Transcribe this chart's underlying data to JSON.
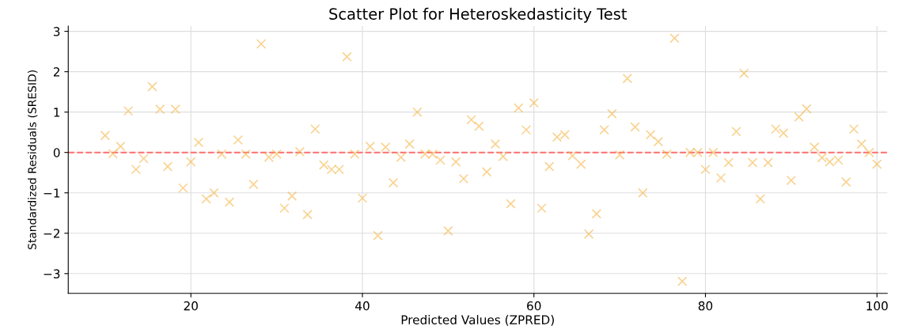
{
  "chart_data": {
    "type": "scatter",
    "title": "Scatter Plot for Heteroskedasticity Test",
    "xlabel": "Predicted Values (ZPRED)",
    "ylabel": "Standardized Residuals (SRESID)",
    "x": [
      10.0,
      10.9,
      11.8,
      12.7,
      13.6,
      14.5,
      15.5,
      16.4,
      17.3,
      18.2,
      19.1,
      20.0,
      20.9,
      21.8,
      22.7,
      23.6,
      24.5,
      25.5,
      26.4,
      27.3,
      28.2,
      29.1,
      30.0,
      30.9,
      31.8,
      32.7,
      33.6,
      34.5,
      35.5,
      36.4,
      37.3,
      38.2,
      39.1,
      40.0,
      40.9,
      41.8,
      42.7,
      43.6,
      44.5,
      45.5,
      46.4,
      47.3,
      48.2,
      49.1,
      50.0,
      50.9,
      51.8,
      52.7,
      53.6,
      54.5,
      55.5,
      56.4,
      57.3,
      58.2,
      59.1,
      60.0,
      60.9,
      61.8,
      62.7,
      63.6,
      64.5,
      65.5,
      66.4,
      67.3,
      68.2,
      69.1,
      70.0,
      70.9,
      71.8,
      72.7,
      73.6,
      74.5,
      75.5,
      76.4,
      77.3,
      78.2,
      79.1,
      80.0,
      80.9,
      81.8,
      82.7,
      83.6,
      84.5,
      85.5,
      86.4,
      87.3,
      88.2,
      89.1,
      90.0,
      90.9,
      91.8,
      92.7,
      93.6,
      94.5,
      95.5,
      96.4,
      97.3,
      98.2,
      99.1,
      100.0
    ],
    "series": [
      {
        "color": "#f5b547",
        "values": [
          0.42,
          -0.03,
          0.15,
          1.03,
          -0.42,
          -0.15,
          1.63,
          1.07,
          -0.35,
          1.07,
          -0.88,
          -0.23,
          0.25,
          -1.15,
          -1.0,
          -0.04,
          -1.23,
          0.31,
          -0.04,
          -0.79,
          2.69,
          -0.12,
          -0.04,
          -1.38,
          -1.08,
          0.02,
          -1.54,
          0.58,
          -0.31,
          -0.42,
          -0.42,
          2.37,
          -0.04,
          -1.13,
          0.15,
          -2.06,
          0.13,
          -0.75,
          -0.12,
          0.21,
          1.0,
          -0.04,
          -0.04,
          -0.19,
          -1.94,
          -0.23,
          -0.65,
          0.81,
          0.65,
          -0.48,
          0.21,
          -0.1,
          -1.27,
          1.1,
          0.56,
          1.23,
          -1.38,
          -0.35,
          0.38,
          0.44,
          -0.08,
          -0.29,
          -2.02,
          -1.52,
          0.56,
          0.96,
          -0.06,
          1.83,
          0.63,
          -1.0,
          0.44,
          0.27,
          -0.04,
          2.83,
          -3.19,
          0.0,
          0.0,
          -0.42,
          0.0,
          -0.63,
          -0.25,
          0.52,
          1.96,
          -0.25,
          -1.15,
          -0.25,
          0.58,
          0.48,
          -0.69,
          0.88,
          1.08,
          0.13,
          -0.13,
          -0.23,
          -0.19,
          -0.73,
          0.58,
          0.21,
          0.0,
          -0.29
        ]
      }
    ],
    "marker": "cross",
    "xlim": [
      5.7,
      101.2
    ],
    "ylim": [
      -3.49,
      3.13
    ],
    "xticks": [
      20,
      40,
      60,
      80,
      100
    ],
    "yticks": [
      {
        "value": -3,
        "label": "−3"
      },
      {
        "value": -2,
        "label": "−2"
      },
      {
        "value": -1,
        "label": "−1"
      },
      0,
      1,
      2,
      3
    ],
    "ref_lines": [
      {
        "axis": "y",
        "value": 0,
        "color": "#ff6f6f",
        "line_style": "dashed"
      }
    ],
    "grid": true
  }
}
